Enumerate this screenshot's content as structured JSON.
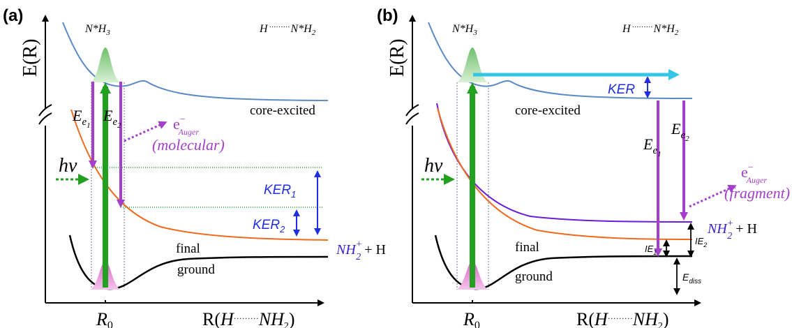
{
  "colors": {
    "ground": "#000000",
    "final": "#f06a1e",
    "core": "#5b8ac6",
    "nh2": "#6a1be0",
    "purple": "#a43fcc",
    "blue": "#1f2fe0",
    "green": "#22a020",
    "cyan": "#33c6e6"
  },
  "panel_a": {
    "label": "(a)",
    "ylabel": "E(R)",
    "top_left": "N*H",
    "top_left_sub": "3",
    "top_right_a": "H",
    "top_right_b": "N*H",
    "top_right_sub": "2",
    "core_label": "core-excited",
    "final_label": "final",
    "ground_label": "ground",
    "hv": "hν",
    "ee": "E",
    "ee_sub_e": "e",
    "e1_sub": "1",
    "e2_sub": "2",
    "auger": "e",
    "auger_sup": "−",
    "auger_sub": "Auger",
    "auger_desc": "(molecular)",
    "ker1": "KER",
    "ker1_sub": "1",
    "ker2": "KER",
    "ker2_sub": "2",
    "product": "NH",
    "product_sub": "2",
    "product_sup": "+",
    "product_tail": " + H",
    "r0": "R",
    "r0_sub": "0",
    "xlabel": "R(",
    "xlabel_a": "H",
    "xlabel_b": "NH",
    "xlabel_sub": "2",
    "xlabel_close": ")"
  },
  "panel_b": {
    "label": "(b)",
    "ylabel": "E(R)",
    "top_left": "N*H",
    "top_left_sub": "3",
    "top_right_a": "H",
    "top_right_b": "N*H",
    "top_right_sub": "2",
    "core_label": "core-excited",
    "final_label": "final",
    "ground_label": "ground",
    "hv": "hν",
    "ker": "KER",
    "ee": "E",
    "ee_sub_e": "e",
    "e1_sub": "1",
    "e2_sub": "2",
    "auger": "e",
    "auger_sup": "−",
    "auger_sub": "Auger",
    "auger_desc": "(fragment)",
    "product": "NH",
    "product_sub": "2",
    "product_sup": "+",
    "product_tail": " + H",
    "ie1": "IE",
    "ie1_sub": "1",
    "ie2": "IE",
    "ie2_sub": "2",
    "ediss": "E",
    "ediss_sub": "diss",
    "r0": "R",
    "r0_sub": "0",
    "xlabel": "R(",
    "xlabel_a": "H",
    "xlabel_b": "NH",
    "xlabel_sub": "2",
    "xlabel_close": ")"
  }
}
